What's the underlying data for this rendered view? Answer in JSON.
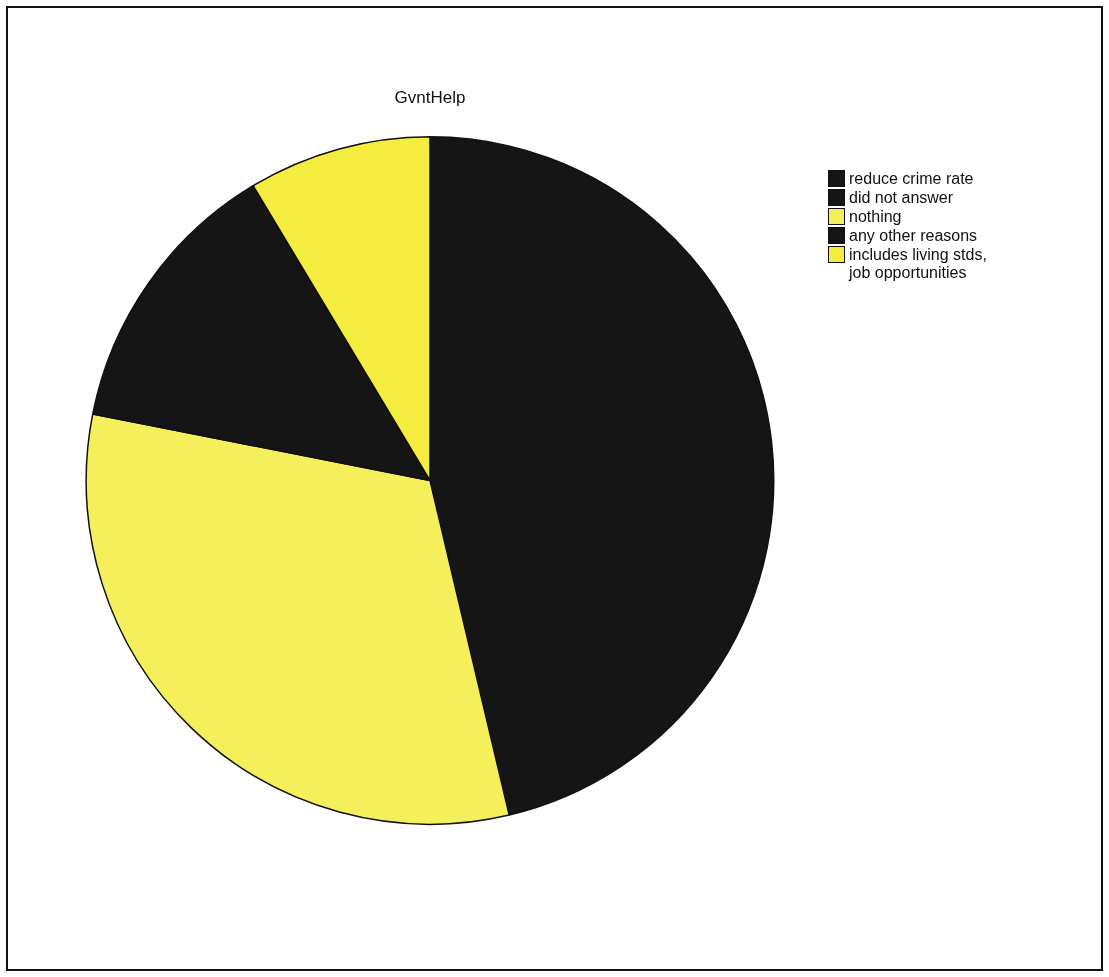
{
  "chart_data": {
    "type": "pie",
    "title": "GvntHelp",
    "categories": [
      "reduce crime rate",
      "did not answer",
      "nothing",
      "any other reasons",
      "includes living stds, job opportunities"
    ],
    "values": [
      46.3,
      0,
      31.8,
      13.3,
      8.6
    ],
    "colors": [
      "#151515",
      "#151515",
      "#f6ef5c",
      "#151515",
      "#f4ec3e"
    ],
    "legend": "top right"
  }
}
